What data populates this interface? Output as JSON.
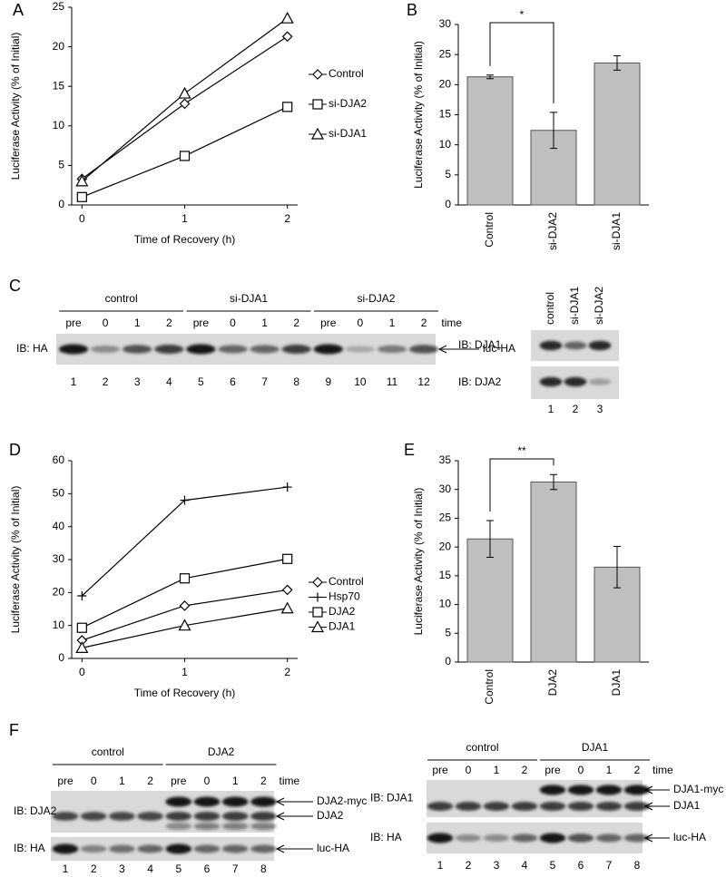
{
  "panel_labels": [
    "A",
    "B",
    "C",
    "D",
    "E",
    "F"
  ],
  "chart_data": [
    {
      "type": "line",
      "ylabel": "Luciferase Activity (% of Initial)",
      "xlabel": "Time of Recovery (h)",
      "x": [
        0,
        1,
        2
      ],
      "xlim": [
        -0.1,
        2.1
      ],
      "xticks": [
        0,
        1,
        2
      ],
      "ylim": [
        0,
        25
      ],
      "yticks": [
        0,
        5,
        10,
        15,
        20,
        25
      ],
      "legend": "right",
      "series": [
        {
          "name": "Control",
          "color": "#000000",
          "marker": "diamond",
          "values": [
            3.3,
            12.8,
            21.3
          ]
        },
        {
          "name": "si-DJA2",
          "color": "#000000",
          "marker": "square",
          "values": [
            1.0,
            6.2,
            12.4
          ]
        },
        {
          "name": "si-DJA1",
          "color": "#000000",
          "marker": "triangle",
          "values": [
            3.0,
            14.1,
            23.6
          ]
        }
      ]
    },
    {
      "type": "bar",
      "ylabel": "Luciferase Activity (% of Initial)",
      "categories": [
        "Control",
        "si-DJA2",
        "si-DJA1"
      ],
      "values": [
        21.3,
        12.4,
        23.6
      ],
      "errors": [
        0.3,
        3.0,
        1.2
      ],
      "color": "#bfbfbf",
      "ylim": [
        0,
        30
      ],
      "yticks": [
        0,
        5,
        10,
        15,
        20,
        25,
        30
      ],
      "annotation": "*"
    },
    {
      "type": "line",
      "ylabel": "Luciferase Activity (% of Initial)",
      "xlabel": "Time of Recovery (h)",
      "x": [
        0,
        1,
        2
      ],
      "xlim": [
        -0.1,
        2.1
      ],
      "xticks": [
        0,
        1,
        2
      ],
      "ylim": [
        0,
        60
      ],
      "yticks": [
        0,
        10,
        20,
        30,
        40,
        50,
        60
      ],
      "legend": "right",
      "series": [
        {
          "name": "Control",
          "color": "#000000",
          "marker": "diamond",
          "values": [
            5.5,
            16.0,
            20.8
          ]
        },
        {
          "name": "Hsp70",
          "color": "#000000",
          "marker": "plus",
          "values": [
            19.0,
            48.0,
            52.0
          ]
        },
        {
          "name": "DJA2",
          "color": "#000000",
          "marker": "square",
          "values": [
            9.3,
            24.3,
            30.2
          ]
        },
        {
          "name": "DJA1",
          "color": "#000000",
          "marker": "triangle",
          "values": [
            3.2,
            10.0,
            15.2
          ]
        }
      ]
    },
    {
      "type": "bar",
      "ylabel": "Luciferase Activity (% of Initial)",
      "categories": [
        "Control",
        "DJA2",
        "DJA1"
      ],
      "values": [
        21.4,
        31.3,
        16.5
      ],
      "errors": [
        3.2,
        1.3,
        3.6
      ],
      "color": "#bfbfbf",
      "ylim": [
        0,
        35
      ],
      "yticks": [
        0,
        5,
        10,
        15,
        20,
        25,
        30,
        35
      ],
      "annotation": "**"
    }
  ],
  "blots": [
    {
      "groups": [
        "control",
        "si-DJA1",
        "si-DJA2"
      ],
      "lanes": [
        "pre",
        "0",
        "1",
        "2",
        "pre",
        "0",
        "1",
        "2",
        "pre",
        "0",
        "1",
        "2"
      ],
      "lane_suffix": "time",
      "rows": [
        {
          "antibody": "IB: HA",
          "bands": [
            "luc-HA"
          ]
        }
      ],
      "lane_numbers": [
        "1",
        "2",
        "3",
        "4",
        "5",
        "6",
        "7",
        "8",
        "9",
        "10",
        "11",
        "12"
      ]
    },
    {
      "lanes": [
        "control",
        "si-DJA1",
        "si-DJA2"
      ],
      "rows": [
        {
          "antibody": "IB: DJA1"
        },
        {
          "antibody": "IB: DJA2"
        }
      ],
      "lane_numbers": [
        "1",
        "2",
        "3"
      ]
    },
    {
      "groups": [
        "control",
        "DJA2"
      ],
      "lanes": [
        "pre",
        "0",
        "1",
        "2",
        "pre",
        "0",
        "1",
        "2"
      ],
      "lane_suffix": "time",
      "rows": [
        {
          "antibody": "IB: DJA2",
          "bands": [
            "DJA2-myc",
            "DJA2"
          ]
        },
        {
          "antibody": "IB: HA",
          "bands": [
            "luc-HA"
          ]
        }
      ],
      "lane_numbers": [
        "1",
        "2",
        "3",
        "4",
        "5",
        "6",
        "7",
        "8"
      ]
    },
    {
      "groups": [
        "control",
        "DJA1"
      ],
      "lanes": [
        "pre",
        "0",
        "1",
        "2",
        "pre",
        "0",
        "1",
        "2"
      ],
      "lane_suffix": "time",
      "rows": [
        {
          "antibody": "IB: DJA1",
          "bands": [
            "DJA1-myc",
            "DJA1"
          ]
        },
        {
          "antibody": "IB: HA",
          "bands": [
            "luc-HA"
          ]
        }
      ],
      "lane_numbers": [
        "1",
        "2",
        "3",
        "4",
        "5",
        "6",
        "7",
        "8"
      ]
    }
  ]
}
